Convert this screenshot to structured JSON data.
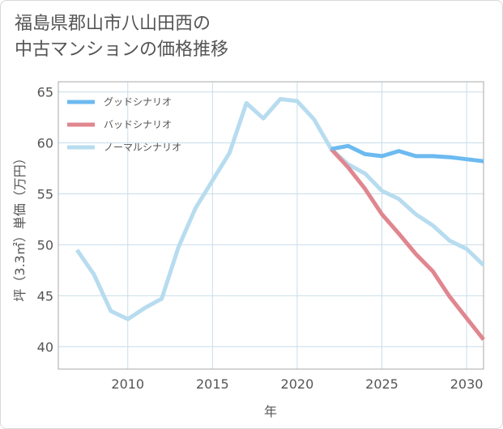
{
  "title_line1": "福島県郡山市八山田西の",
  "title_line2": "中古マンションの価格推移",
  "colors": {
    "good": "#6cbaf0",
    "bad": "#e0868f",
    "normal": "#b7dcef",
    "grid": "#c9dde9",
    "axis": "#555555"
  },
  "chart_data": {
    "type": "line",
    "title": "福島県郡山市八山田西の中古マンションの価格推移",
    "xlabel": "年",
    "ylabel": "坪（3.3㎡）単価（万円）",
    "xlim": [
      2005.9,
      2031.0
    ],
    "ylim": [
      37.8,
      66.0
    ],
    "xticks": [
      2010,
      2015,
      2020,
      2025,
      2030
    ],
    "yticks": [
      40,
      45,
      50,
      55,
      60,
      65
    ],
    "legend_position": "top-left",
    "series": [
      {
        "name": "グッドシナリオ",
        "color": "#6cbaf0",
        "x": [
          2022,
          2023,
          2024,
          2025,
          2026,
          2027,
          2028,
          2029,
          2030,
          2031
        ],
        "y": [
          59.4,
          59.7,
          58.9,
          58.7,
          59.2,
          58.7,
          58.7,
          58.6,
          58.4,
          58.2
        ]
      },
      {
        "name": "バッドシナリオ",
        "color": "#e0868f",
        "x": [
          2022,
          2023,
          2024,
          2025,
          2026,
          2027,
          2028,
          2029,
          2030,
          2031
        ],
        "y": [
          59.4,
          57.6,
          55.5,
          53.0,
          51.1,
          49.1,
          47.4,
          44.9,
          42.8,
          40.7
        ]
      },
      {
        "name": "ノーマルシナリオ",
        "color": "#b7dcef",
        "x": [
          2007,
          2008,
          2009,
          2010,
          2011,
          2012,
          2013,
          2014,
          2015,
          2016,
          2017,
          2018,
          2019,
          2020,
          2021,
          2022,
          2023,
          2024,
          2025,
          2026,
          2027,
          2028,
          2029,
          2030,
          2031
        ],
        "y": [
          49.5,
          47.1,
          43.5,
          42.7,
          43.8,
          44.7,
          49.8,
          53.6,
          56.3,
          59.0,
          63.9,
          62.4,
          64.3,
          64.1,
          62.3,
          59.4,
          57.9,
          57.0,
          55.3,
          54.5,
          53.0,
          51.9,
          50.4,
          49.6,
          48.0
        ]
      }
    ]
  }
}
